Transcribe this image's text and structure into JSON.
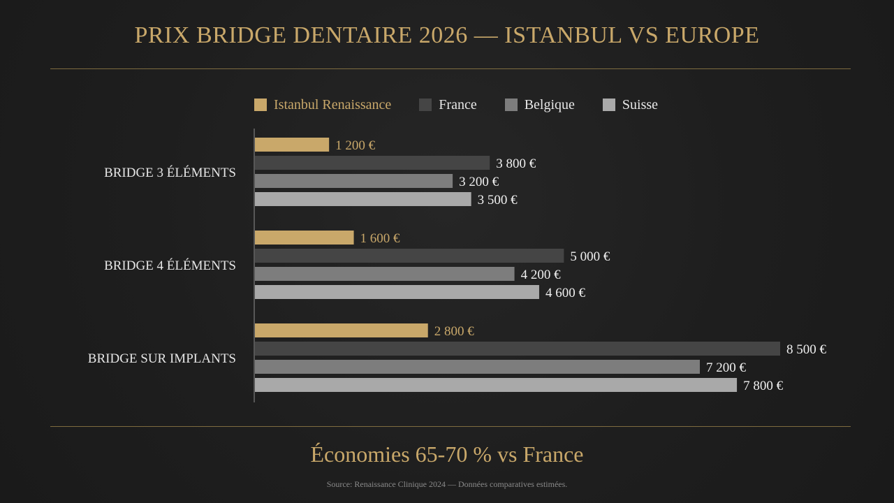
{
  "title": "PRIX BRIDGE DENTAIRE 2026 — ISTANBUL VS EUROPE",
  "footer": {
    "savings": "Économies 65-70 % vs France",
    "source": "Source: Renaissance Clinique 2024 — Données comparatives estimées."
  },
  "chart_data": {
    "type": "bar",
    "orientation": "horizontal",
    "title": "PRIX BRIDGE DENTAIRE 2026 — ISTANBUL VS EUROPE",
    "legend_position": "top",
    "grid": false,
    "categories": [
      "BRIDGE 3 ÉLÉMENTS",
      "BRIDGE 4 ÉLÉMENTS",
      "BRIDGE SUR IMPLANTS"
    ],
    "series": [
      {
        "name": "Istanbul Renaissance",
        "color": "#c9a86a",
        "label_color": "#c9a86a",
        "values": [
          1200,
          1600,
          2800
        ],
        "labels": [
          "1 200 €",
          "1 600 €",
          "2 800 €"
        ]
      },
      {
        "name": "France",
        "color": "#454545",
        "label_color": "#f0f0f0",
        "values": [
          3800,
          5000,
          8500
        ],
        "labels": [
          "3 800 €",
          "5 000 €",
          "8 500 €"
        ]
      },
      {
        "name": "Belgique",
        "color": "#7d7d7d",
        "label_color": "#f0f0f0",
        "values": [
          3200,
          4200,
          7200
        ],
        "labels": [
          "3 200 €",
          "4 200 €",
          "7 200 €"
        ]
      },
      {
        "name": "Suisse",
        "color": "#a9a9a9",
        "label_color": "#f0f0f0",
        "values": [
          3500,
          4600,
          7800
        ],
        "labels": [
          "3 500 €",
          "4 600 €",
          "7 800 €"
        ]
      }
    ],
    "xlim": [
      0,
      8500
    ],
    "unit": "€"
  }
}
